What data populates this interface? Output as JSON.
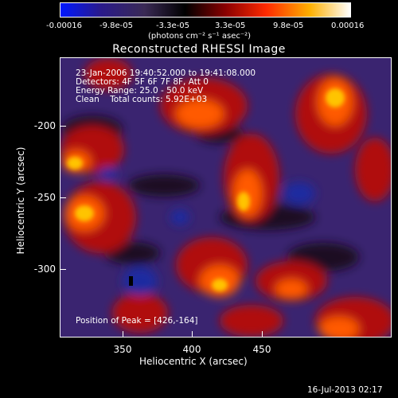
{
  "colorbar": {
    "tick_labels": [
      "-0.00016",
      "-9.8e-05",
      "-3.3e-05",
      "3.3e-05",
      "9.8e-05",
      "0.00016"
    ],
    "units": "(photons cm⁻² s⁻¹ asec⁻²)"
  },
  "title": "Reconstructed RHESSI Image",
  "info": {
    "line1": "23-Jan-2006 19:40:52.000 to 19:41:08.000",
    "line2": "Detectors: 4F 5F 6F 7F 8F, Att 0",
    "line3": "Energy Range: 25.0 - 50.0 keV",
    "line4": "Clean    Total counts: 5.92E+03",
    "peak": "Position of Peak = [426,-164]"
  },
  "axes": {
    "xlabel": "Heliocentric X (arcsec)",
    "ylabel": "Heliocentric Y (arcsec)",
    "xticks": [
      "350",
      "400",
      "450"
    ],
    "yticks": [
      "-200",
      "-250",
      "-300"
    ],
    "x_range": [
      306,
      497
    ],
    "y_range": [
      -348,
      -148
    ]
  },
  "footer": "16-Jul-2013 02:17",
  "colors": {
    "colorbar_stops": [
      "#0018ff",
      "#2a1a8a",
      "#3a2a55",
      "#000000",
      "#8a0000",
      "#ff2a00",
      "#ffb000",
      "#ffffff"
    ],
    "map_background": "#3a2470"
  }
}
